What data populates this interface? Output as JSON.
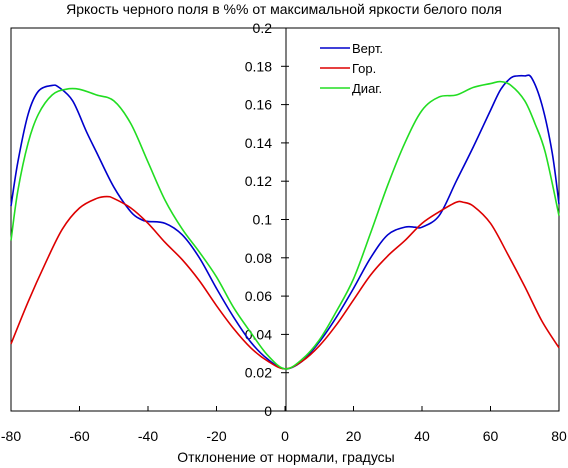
{
  "chart_data": {
    "type": "line",
    "title": "Яркость черного поля в %% от максимальной яркости белого поля",
    "xlabel": "Отклонение от нормали, градусы",
    "ylabel": "",
    "xlim": [
      -80,
      80
    ],
    "ylim": [
      0,
      0.2
    ],
    "x_ticks": [
      -80,
      -60,
      -40,
      -20,
      0,
      20,
      40,
      60,
      80
    ],
    "y_ticks": [
      0,
      0.02,
      0.04,
      0.06,
      0.08,
      0.1,
      0.12,
      0.14,
      0.16,
      0.18,
      0.2
    ],
    "x_tick_labels": [
      "-80",
      "-60",
      "-40",
      "-20",
      "0",
      "20",
      "40",
      "60",
      "80"
    ],
    "y_tick_labels": [
      "0",
      "0.02",
      "0.04",
      "0.06",
      "0.08",
      "0.1",
      "0.12",
      "0.14",
      "0.16",
      "0.18",
      "0.2"
    ],
    "grid": false,
    "legend_position": "top-right",
    "series": [
      {
        "name": "Верт.",
        "color": "#0000cc",
        "x": [
          -80,
          -78,
          -75,
          -72,
          -68,
          -66,
          -62,
          -58,
          -55,
          -50,
          -45,
          -42,
          -40,
          -35,
          -30,
          -25,
          -20,
          -15,
          -10,
          -5,
          0,
          5,
          10,
          15,
          20,
          25,
          30,
          35,
          38,
          40,
          45,
          50,
          55,
          60,
          63,
          66,
          68,
          70,
          72,
          75,
          78,
          80
        ],
        "y": [
          0.107,
          0.13,
          0.155,
          0.167,
          0.17,
          0.169,
          0.162,
          0.146,
          0.135,
          0.117,
          0.104,
          0.1,
          0.099,
          0.098,
          0.092,
          0.08,
          0.064,
          0.049,
          0.036,
          0.027,
          0.022,
          0.026,
          0.036,
          0.049,
          0.064,
          0.08,
          0.092,
          0.096,
          0.096,
          0.096,
          0.102,
          0.12,
          0.138,
          0.157,
          0.168,
          0.174,
          0.175,
          0.175,
          0.174,
          0.16,
          0.135,
          0.108
        ]
      },
      {
        "name": "Гор.",
        "color": "#dd0000",
        "x": [
          -80,
          -75,
          -70,
          -65,
          -60,
          -55,
          -52,
          -50,
          -45,
          -40,
          -35,
          -30,
          -25,
          -20,
          -15,
          -10,
          -5,
          0,
          5,
          10,
          15,
          20,
          25,
          30,
          35,
          40,
          45,
          50,
          52,
          55,
          60,
          65,
          70,
          75,
          80
        ],
        "y": [
          0.035,
          0.057,
          0.077,
          0.095,
          0.106,
          0.111,
          0.112,
          0.111,
          0.106,
          0.098,
          0.088,
          0.079,
          0.068,
          0.055,
          0.043,
          0.033,
          0.026,
          0.022,
          0.026,
          0.034,
          0.045,
          0.058,
          0.071,
          0.081,
          0.089,
          0.098,
          0.104,
          0.109,
          0.109,
          0.107,
          0.098,
          0.082,
          0.065,
          0.047,
          0.033
        ]
      },
      {
        "name": "Диаг.",
        "color": "#22dd22",
        "x": [
          -80,
          -78,
          -75,
          -72,
          -68,
          -64,
          -60,
          -55,
          -50,
          -45,
          -40,
          -35,
          -30,
          -25,
          -20,
          -15,
          -10,
          -5,
          0,
          5,
          10,
          15,
          20,
          25,
          30,
          35,
          40,
          45,
          50,
          55,
          60,
          63,
          66,
          70,
          73,
          76,
          80
        ],
        "y": [
          0.089,
          0.115,
          0.14,
          0.155,
          0.165,
          0.168,
          0.168,
          0.165,
          0.162,
          0.15,
          0.13,
          0.11,
          0.095,
          0.083,
          0.07,
          0.054,
          0.041,
          0.029,
          0.022,
          0.027,
          0.037,
          0.052,
          0.069,
          0.093,
          0.118,
          0.14,
          0.157,
          0.164,
          0.165,
          0.169,
          0.171,
          0.172,
          0.17,
          0.162,
          0.15,
          0.135,
          0.102
        ]
      }
    ]
  }
}
